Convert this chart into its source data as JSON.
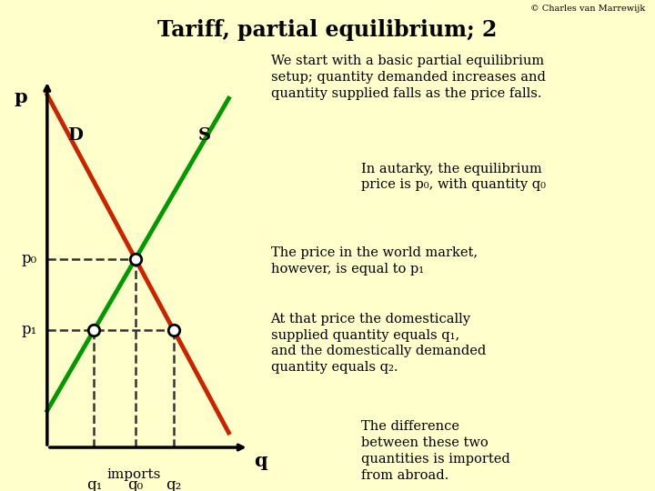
{
  "title": "Tariff, partial equilibrium; 2",
  "copyright": "© Charles van Marrewijk",
  "bg_color": "#FFFFCC",
  "header_color": "#55EEFF",
  "text_box_color": "#88DDCC",
  "demand_color": "#CC2200",
  "supply_color": "#009900",
  "arrow_color": "#DDDD00",
  "arrow_edge_color": "#888800",
  "dashed_color": "#333333",
  "text1": "We start with a basic partial equilibrium\nsetup; quantity demanded increases and\nquantity supplied falls as the price falls.",
  "text2": "In autarky, the equilibrium\nprice is p₀, with quantity q₀",
  "text3": "The price in the world market,\nhowever, is equal to p₁",
  "text4": "At that price the domestically\nsupplied quantity equals q₁,\nand the domestically demanded\nquantity equals q₂.",
  "text5": "The difference\nbetween these two\nquantities is imported\nfrom abroad."
}
